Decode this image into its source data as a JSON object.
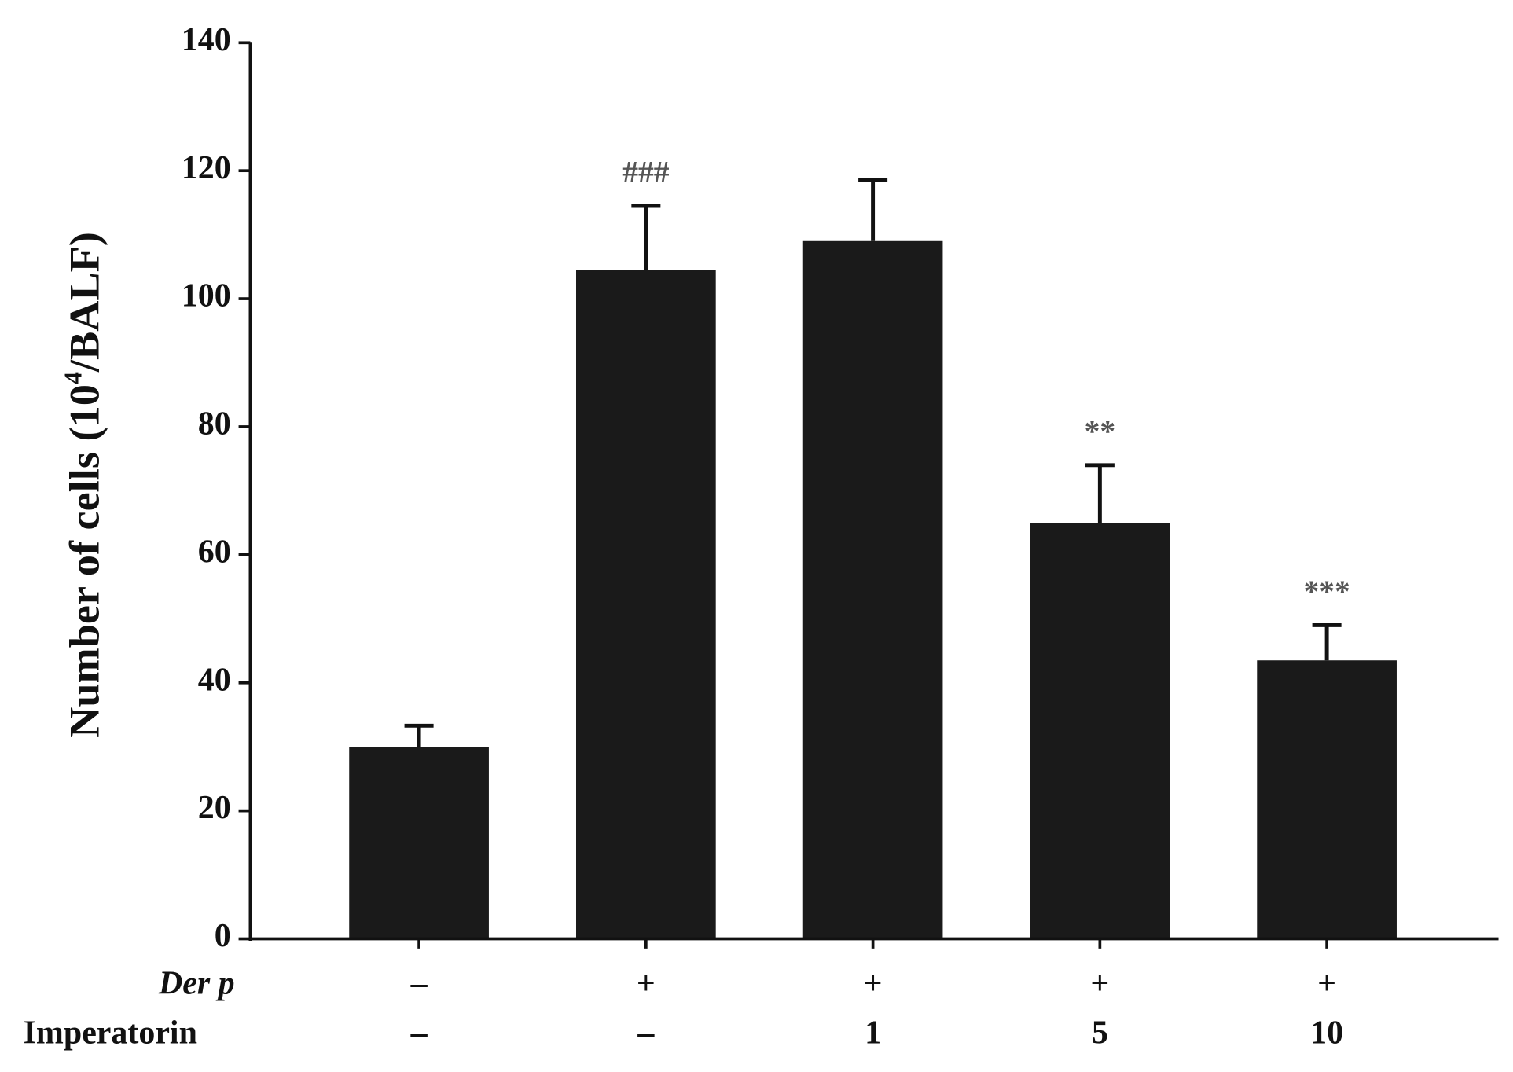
{
  "chart_data": {
    "type": "bar",
    "ylabel": "Number of cells (10",
    "ylabel_superscript": "4",
    "ylabel_end": "/BALF)",
    "values": [
      30,
      104.5,
      109,
      65,
      43.5
    ],
    "errors": [
      3.3,
      10,
      9.5,
      9,
      5.5
    ],
    "color": "#1a1a1a",
    "ylim": [
      0,
      140
    ],
    "yticks": [
      0,
      20,
      40,
      60,
      80,
      100,
      120,
      140
    ],
    "rows": [
      {
        "label": "Der p",
        "values": [
          "–",
          "+",
          "+",
          "+",
          "+"
        ]
      },
      {
        "label": "Imperatorin",
        "values": [
          "–",
          "–",
          "1",
          "5",
          "10"
        ]
      }
    ],
    "annotations": [
      {
        "bar": 1,
        "text": "###"
      },
      {
        "bar": 3,
        "text": "**"
      },
      {
        "bar": 4,
        "text": "***"
      }
    ]
  }
}
